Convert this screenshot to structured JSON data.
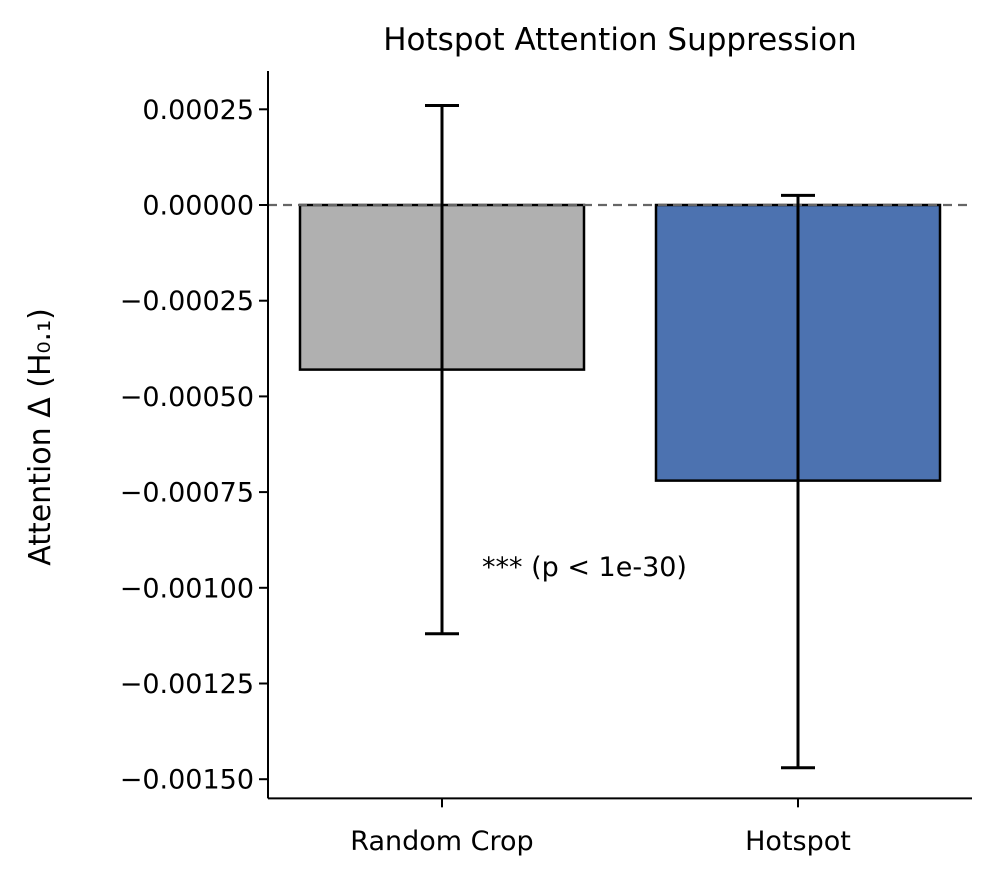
{
  "chart_data": {
    "type": "bar",
    "title": "Hotspot Attention Suppression",
    "xlabel": "",
    "ylabel": "Attention Δ (H₀.₁)",
    "categories": [
      "Random Crop",
      "Hotspot"
    ],
    "values": [
      -0.00043,
      -0.00072
    ],
    "error_low": [
      -0.00112,
      -0.00147
    ],
    "error_high": [
      0.00026,
      2.5e-05
    ],
    "colors": [
      "#b0b0b0",
      "#4c72b0"
    ],
    "edge_color": "#000000",
    "ylim": [
      -0.00155,
      0.00035
    ],
    "yticks": [
      0.00025,
      0.0,
      -0.00025,
      -0.0005,
      -0.00075,
      -0.001,
      -0.00125,
      -0.0015
    ],
    "ytick_labels": [
      "0.00025",
      "0.00000",
      "−0.00025",
      "−0.00050",
      "−0.00075",
      "−0.00100",
      "−0.00125",
      "−0.00150"
    ],
    "reference_line": {
      "y": 0,
      "style": "dashed",
      "color": "#666666"
    },
    "annotation": "***  (p < 1e-30)",
    "grid": false,
    "legend": "none"
  }
}
